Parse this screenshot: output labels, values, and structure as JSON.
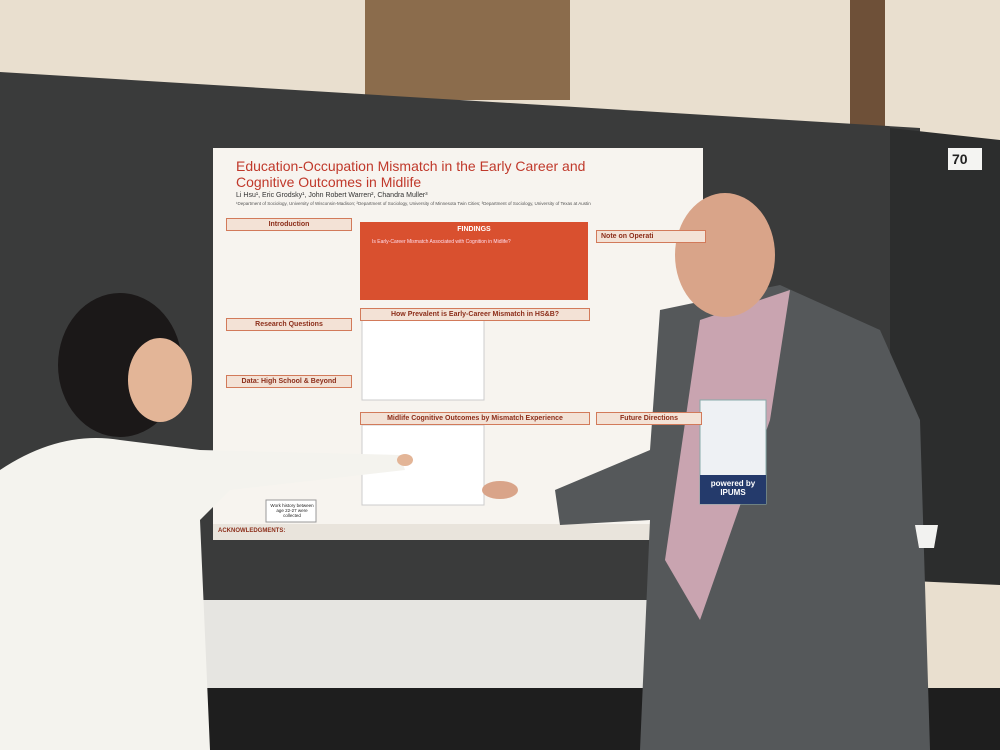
{
  "scene": {
    "booth_number": "70"
  },
  "poster": {
    "title": "Education-Occupation Mismatch in the Early Career and Cognitive Outcomes in Midlife",
    "authors": "Li Hsu¹, Eric Grodsky¹, John Robert Warren², Chandra Muller³",
    "affiliations": "¹Department of Sociology, University of Wisconsin-Madison; ²Department of Sociology, University of Minnesota Twin Cities; ³Department of Sociology, University of Texas at Austin",
    "sections": {
      "introduction": "Introduction",
      "research_questions": "Research Questions",
      "data": "Data: High School & Beyond",
      "findings": "FINDINGS",
      "findings_question": "Is Early-Career Mismatch Associated with Cognition in Midlife?",
      "prevalence": "How Prevalent is Early-Career Mismatch in HS&B?",
      "midlife": "Midlife Cognitive Outcomes by Mismatch Experience",
      "note": "Note on Operati",
      "future": "Future Directions",
      "acknowledgments": "ACKNOWLEDGMENTS:"
    },
    "sticky_note": "Work history between age 22-27 were collected"
  },
  "badge": {
    "sponsor": "powered by IPUMS"
  }
}
